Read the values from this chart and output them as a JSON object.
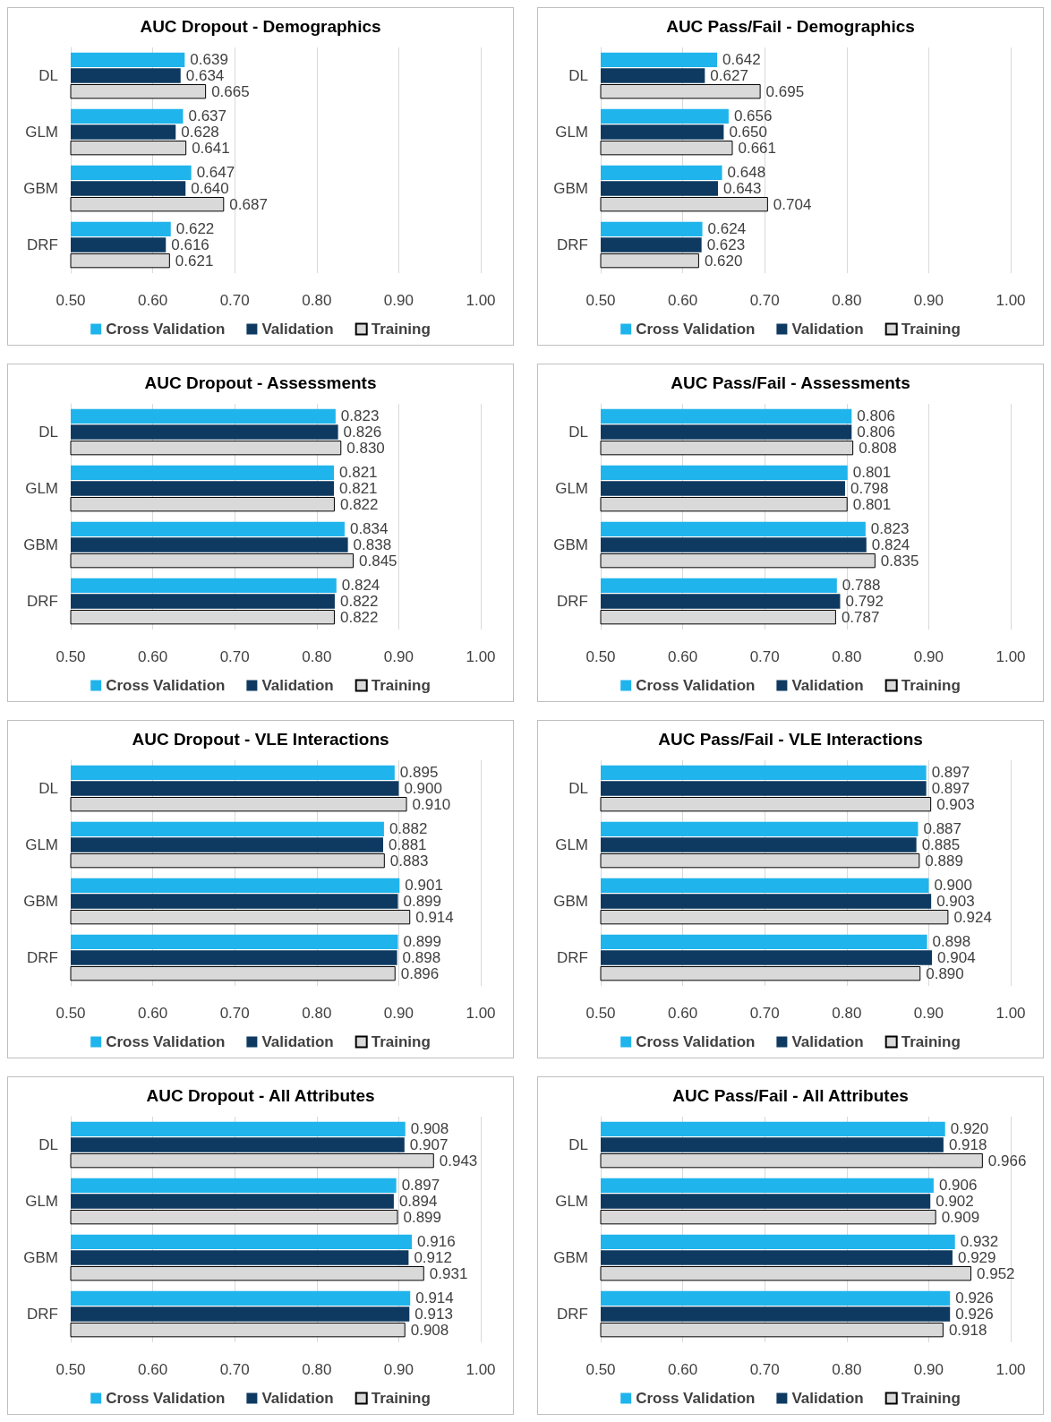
{
  "chart_data": [
    {
      "type": "bar",
      "orientation": "horizontal",
      "title": "AUC Dropout - Demographics",
      "categories": [
        "DL",
        "GLM",
        "GBM",
        "DRF"
      ],
      "xlim": [
        0.5,
        1.0
      ],
      "xticks": [
        {
          "value": 0.5,
          "label": "0.50"
        },
        {
          "value": 0.6,
          "label": "0.60"
        },
        {
          "value": 0.7,
          "label": "0.70"
        },
        {
          "value": 0.8,
          "label": "0.80"
        },
        {
          "value": 0.9,
          "label": "0.90"
        },
        {
          "value": 1.0,
          "label": "1.00"
        }
      ],
      "grid": "x",
      "legend": "bottom",
      "series": [
        {
          "name": "Cross Validation",
          "color": "#1fb4ec",
          "values": [
            0.639,
            0.637,
            0.647,
            0.622
          ],
          "value_labels": [
            "0.639",
            "0.637",
            "0.647",
            "0.622"
          ]
        },
        {
          "name": "Validation",
          "color": "#0e3a61",
          "values": [
            0.634,
            0.628,
            0.64,
            0.616
          ],
          "value_labels": [
            "0.634",
            "0.628",
            "0.640",
            "0.616"
          ]
        },
        {
          "name": "Training",
          "color": "#d9d9d9",
          "values": [
            0.665,
            0.641,
            0.687,
            0.621
          ],
          "value_labels": [
            "0.665",
            "0.641",
            "0.687",
            "0.621"
          ]
        }
      ]
    },
    {
      "type": "bar",
      "orientation": "horizontal",
      "title": "AUC Pass/Fail - Demographics",
      "categories": [
        "DL",
        "GLM",
        "GBM",
        "DRF"
      ],
      "xlim": [
        0.5,
        1.0
      ],
      "xticks": [
        {
          "value": 0.5,
          "label": "0.50"
        },
        {
          "value": 0.6,
          "label": "0.60"
        },
        {
          "value": 0.7,
          "label": "0.70"
        },
        {
          "value": 0.8,
          "label": "0.80"
        },
        {
          "value": 0.9,
          "label": "0.90"
        },
        {
          "value": 1.0,
          "label": "1.00"
        }
      ],
      "grid": "x",
      "legend": "bottom",
      "series": [
        {
          "name": "Cross Validation",
          "color": "#1fb4ec",
          "values": [
            0.642,
            0.656,
            0.648,
            0.624
          ],
          "value_labels": [
            "0.642",
            "0.656",
            "0.648",
            "0.624"
          ]
        },
        {
          "name": "Validation",
          "color": "#0e3a61",
          "values": [
            0.627,
            0.65,
            0.643,
            0.623
          ],
          "value_labels": [
            "0.627",
            "0.650",
            "0.643",
            "0.623"
          ]
        },
        {
          "name": "Training",
          "color": "#d9d9d9",
          "values": [
            0.695,
            0.661,
            0.704,
            0.62
          ],
          "value_labels": [
            "0.695",
            "0.661",
            "0.704",
            "0.620"
          ]
        }
      ]
    },
    {
      "type": "bar",
      "orientation": "horizontal",
      "title": "AUC Dropout - Assessments",
      "categories": [
        "DL",
        "GLM",
        "GBM",
        "DRF"
      ],
      "xlim": [
        0.5,
        1.0
      ],
      "xticks": [
        {
          "value": 0.5,
          "label": "0.50"
        },
        {
          "value": 0.6,
          "label": "0.60"
        },
        {
          "value": 0.7,
          "label": "0.70"
        },
        {
          "value": 0.8,
          "label": "0.80"
        },
        {
          "value": 0.9,
          "label": "0.90"
        },
        {
          "value": 1.0,
          "label": "1.00"
        }
      ],
      "grid": "x",
      "legend": "bottom",
      "series": [
        {
          "name": "Cross Validation",
          "color": "#1fb4ec",
          "values": [
            0.823,
            0.821,
            0.834,
            0.824
          ],
          "value_labels": [
            "0.823",
            "0.821",
            "0.834",
            "0.824"
          ]
        },
        {
          "name": "Validation",
          "color": "#0e3a61",
          "values": [
            0.826,
            0.821,
            0.838,
            0.822
          ],
          "value_labels": [
            "0.826",
            "0.821",
            "0.838",
            "0.822"
          ]
        },
        {
          "name": "Training",
          "color": "#d9d9d9",
          "values": [
            0.83,
            0.822,
            0.845,
            0.822
          ],
          "value_labels": [
            "0.830",
            "0.822",
            "0.845",
            "0.822"
          ]
        }
      ]
    },
    {
      "type": "bar",
      "orientation": "horizontal",
      "title": "AUC Pass/Fail - Assessments",
      "categories": [
        "DL",
        "GLM",
        "GBM",
        "DRF"
      ],
      "xlim": [
        0.5,
        1.0
      ],
      "xticks": [
        {
          "value": 0.5,
          "label": "0.50"
        },
        {
          "value": 0.6,
          "label": "0.60"
        },
        {
          "value": 0.7,
          "label": "0.70"
        },
        {
          "value": 0.8,
          "label": "0.80"
        },
        {
          "value": 0.9,
          "label": "0.90"
        },
        {
          "value": 1.0,
          "label": "1.00"
        }
      ],
      "grid": "x",
      "legend": "bottom",
      "series": [
        {
          "name": "Cross Validation",
          "color": "#1fb4ec",
          "values": [
            0.806,
            0.801,
            0.823,
            0.788
          ],
          "value_labels": [
            "0.806",
            "0.801",
            "0.823",
            "0.788"
          ]
        },
        {
          "name": "Validation",
          "color": "#0e3a61",
          "values": [
            0.806,
            0.798,
            0.824,
            0.792
          ],
          "value_labels": [
            "0.806",
            "0.798",
            "0.824",
            "0.792"
          ]
        },
        {
          "name": "Training",
          "color": "#d9d9d9",
          "values": [
            0.808,
            0.801,
            0.835,
            0.787
          ],
          "value_labels": [
            "0.808",
            "0.801",
            "0.835",
            "0.787"
          ]
        }
      ]
    },
    {
      "type": "bar",
      "orientation": "horizontal",
      "title": "AUC Dropout - VLE Interactions",
      "categories": [
        "DL",
        "GLM",
        "GBM",
        "DRF"
      ],
      "xlim": [
        0.5,
        1.0
      ],
      "xticks": [
        {
          "value": 0.5,
          "label": "0.50"
        },
        {
          "value": 0.6,
          "label": "0.60"
        },
        {
          "value": 0.7,
          "label": "0.70"
        },
        {
          "value": 0.8,
          "label": "0.80"
        },
        {
          "value": 0.9,
          "label": "0.90"
        },
        {
          "value": 1.0,
          "label": "1.00"
        }
      ],
      "grid": "x",
      "legend": "bottom",
      "series": [
        {
          "name": "Cross Validation",
          "color": "#1fb4ec",
          "values": [
            0.895,
            0.882,
            0.901,
            0.899
          ],
          "value_labels": [
            "0.895",
            "0.882",
            "0.901",
            "0.899"
          ]
        },
        {
          "name": "Validation",
          "color": "#0e3a61",
          "values": [
            0.9,
            0.881,
            0.899,
            0.898
          ],
          "value_labels": [
            "0.900",
            "0.881",
            "0.899",
            "0.898"
          ]
        },
        {
          "name": "Training",
          "color": "#d9d9d9",
          "values": [
            0.91,
            0.883,
            0.914,
            0.896
          ],
          "value_labels": [
            "0.910",
            "0.883",
            "0.914",
            "0.896"
          ]
        }
      ]
    },
    {
      "type": "bar",
      "orientation": "horizontal",
      "title": "AUC Pass/Fail - VLE Interactions",
      "categories": [
        "DL",
        "GLM",
        "GBM",
        "DRF"
      ],
      "xlim": [
        0.5,
        1.0
      ],
      "xticks": [
        {
          "value": 0.5,
          "label": "0.50"
        },
        {
          "value": 0.6,
          "label": "0.60"
        },
        {
          "value": 0.7,
          "label": "0.70"
        },
        {
          "value": 0.8,
          "label": "0.80"
        },
        {
          "value": 0.9,
          "label": "0.90"
        },
        {
          "value": 1.0,
          "label": "1.00"
        }
      ],
      "grid": "x",
      "legend": "bottom",
      "series": [
        {
          "name": "Cross Validation",
          "color": "#1fb4ec",
          "values": [
            0.897,
            0.887,
            0.9,
            0.898
          ],
          "value_labels": [
            "0.897",
            "0.887",
            "0.900",
            "0.898"
          ]
        },
        {
          "name": "Validation",
          "color": "#0e3a61",
          "values": [
            0.897,
            0.885,
            0.903,
            0.904
          ],
          "value_labels": [
            "0.897",
            "0.885",
            "0.903",
            "0.904"
          ]
        },
        {
          "name": "Training",
          "color": "#d9d9d9",
          "values": [
            0.903,
            0.889,
            0.924,
            0.89
          ],
          "value_labels": [
            "0.903",
            "0.889",
            "0.924",
            "0.890"
          ]
        }
      ]
    },
    {
      "type": "bar",
      "orientation": "horizontal",
      "title": "AUC Dropout - All Attributes",
      "categories": [
        "DL",
        "GLM",
        "GBM",
        "DRF"
      ],
      "xlim": [
        0.5,
        1.0
      ],
      "xticks": [
        {
          "value": 0.5,
          "label": "0.50"
        },
        {
          "value": 0.6,
          "label": "0.60"
        },
        {
          "value": 0.7,
          "label": "0.70"
        },
        {
          "value": 0.8,
          "label": "0.80"
        },
        {
          "value": 0.9,
          "label": "0.90"
        },
        {
          "value": 1.0,
          "label": "1.00"
        }
      ],
      "grid": "x",
      "legend": "bottom",
      "series": [
        {
          "name": "Cross Validation",
          "color": "#1fb4ec",
          "values": [
            0.908,
            0.897,
            0.916,
            0.914
          ],
          "value_labels": [
            "0.908",
            "0.897",
            "0.916",
            "0.914"
          ]
        },
        {
          "name": "Validation",
          "color": "#0e3a61",
          "values": [
            0.907,
            0.894,
            0.912,
            0.913
          ],
          "value_labels": [
            "0.907",
            "0.894",
            "0.912",
            "0.913"
          ]
        },
        {
          "name": "Training",
          "color": "#d9d9d9",
          "values": [
            0.943,
            0.899,
            0.931,
            0.908
          ],
          "value_labels": [
            "0.943",
            "0.899",
            "0.931",
            "0.908"
          ]
        }
      ]
    },
    {
      "type": "bar",
      "orientation": "horizontal",
      "title": "AUC Pass/Fail - All Attributes",
      "categories": [
        "DL",
        "GLM",
        "GBM",
        "DRF"
      ],
      "xlim": [
        0.5,
        1.0
      ],
      "xticks": [
        {
          "value": 0.5,
          "label": "0.50"
        },
        {
          "value": 0.6,
          "label": "0.60"
        },
        {
          "value": 0.7,
          "label": "0.70"
        },
        {
          "value": 0.8,
          "label": "0.80"
        },
        {
          "value": 0.9,
          "label": "0.90"
        },
        {
          "value": 1.0,
          "label": "1.00"
        }
      ],
      "grid": "x",
      "legend": "bottom",
      "series": [
        {
          "name": "Cross Validation",
          "color": "#1fb4ec",
          "values": [
            0.92,
            0.906,
            0.932,
            0.926
          ],
          "value_labels": [
            "0.920",
            "0.906",
            "0.932",
            "0.926"
          ]
        },
        {
          "name": "Validation",
          "color": "#0e3a61",
          "values": [
            0.918,
            0.902,
            0.929,
            0.926
          ],
          "value_labels": [
            "0.918",
            "0.902",
            "0.929",
            "0.926"
          ]
        },
        {
          "name": "Training",
          "color": "#d9d9d9",
          "values": [
            0.966,
            0.909,
            0.952,
            0.918
          ],
          "value_labels": [
            "0.966",
            "0.909",
            "0.952",
            "0.918"
          ]
        }
      ]
    }
  ]
}
